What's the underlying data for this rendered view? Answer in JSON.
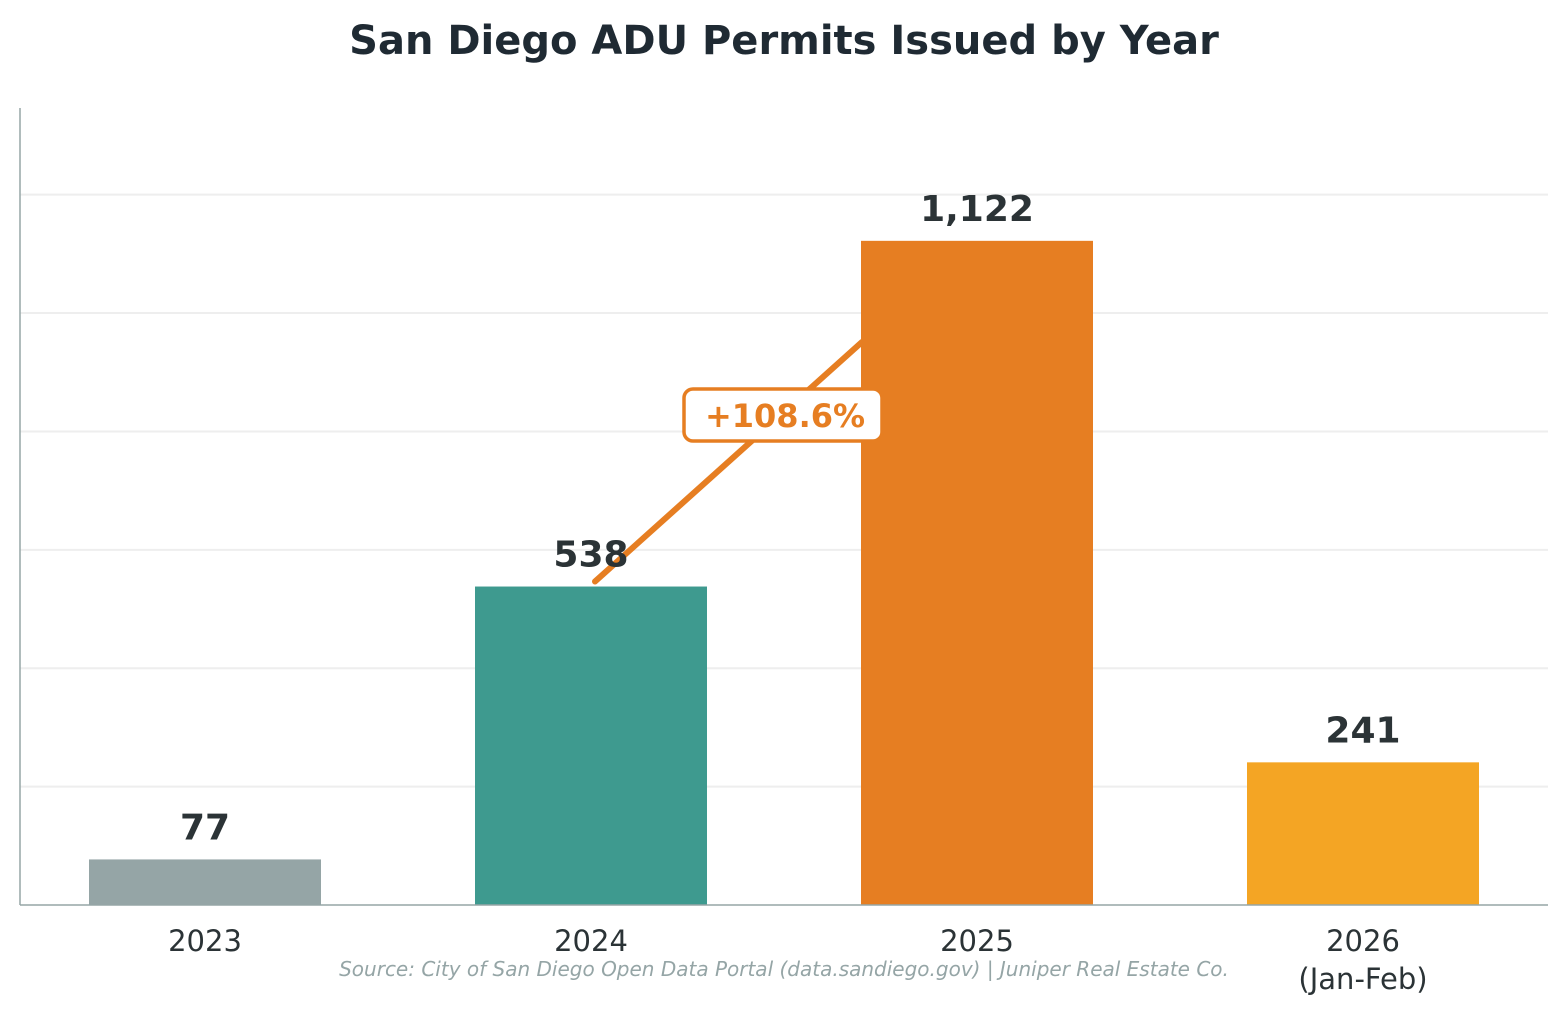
{
  "chart_data": {
    "type": "bar",
    "title": "San Diego ADU Permits Issued by Year",
    "categories": [
      "2023",
      "2024",
      "2025",
      "2026\n(Jan-Feb)"
    ],
    "values": [
      77,
      538,
      1122,
      241
    ],
    "value_labels": [
      "77",
      "538",
      "1,122",
      "241"
    ],
    "colors": [
      "#95a5a6",
      "#3e9a8f",
      "#e67e22",
      "#f4a524"
    ],
    "xlabel": "",
    "ylabel": "",
    "ylim": [
      0,
      1346.4
    ],
    "grid": {
      "y": true,
      "step": 200,
      "color": "#eeeeee"
    },
    "y_ticks_visible": false,
    "annotation": {
      "text": "+108.6%",
      "from_category": "2024",
      "to_category": "2025",
      "color": "#e67e22"
    },
    "source": "Source: City of San Diego Open Data Portal (data.sandiego.gov) | Juniper Real Estate Co."
  }
}
